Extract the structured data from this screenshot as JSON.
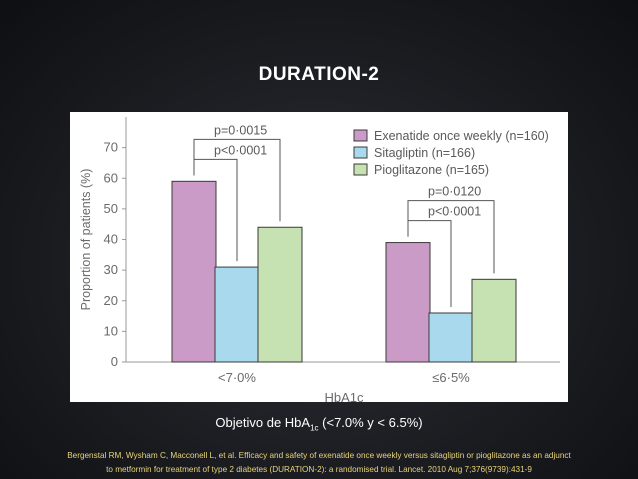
{
  "slide": {
    "title": "DURATION-2",
    "caption_prefix": "Objetivo de HbA",
    "caption_sub": "1c",
    "caption_suffix": " (<7.0% y < 6.5%)",
    "reference_line1": "Bergenstal RM, Wysham C, Macconell L, et al. Efficacy and safety of exenatide once weekly versus sitagliptin or pioglitazone as an adjunct",
    "reference_line2": "to metformin for treatment of type 2 diabetes (DURATION-2): a randomised trial. Lancet. 2010 Aug 7;376(9739):431-9"
  },
  "colors": {
    "exenatide": "#c99bc6",
    "sitagliptin": "#a9d9ec",
    "pioglitazone": "#c6e2b2"
  },
  "chart_data": {
    "type": "bar",
    "title": "",
    "xlabel": "HbA1c",
    "ylabel": "Proportion of patients (%)",
    "ylim": [
      0,
      80
    ],
    "yticks": [
      0,
      10,
      20,
      30,
      40,
      50,
      60,
      70
    ],
    "categories": [
      "<7·0%",
      "≤6·5%"
    ],
    "series": [
      {
        "name": "Exenatide once weekly (n=160)",
        "values": [
          59,
          39
        ]
      },
      {
        "name": "Sitagliptin (n=166)",
        "values": [
          31,
          16
        ]
      },
      {
        "name": "Pioglitazone (n=165)",
        "values": [
          44,
          27
        ]
      }
    ],
    "legend_position": "top-right",
    "annotations": [
      {
        "label": "p=0·0015",
        "group": 0,
        "from_series": 0,
        "to_series": 2
      },
      {
        "label": "p<0·0001",
        "group": 0,
        "from_series": 0,
        "to_series": 1
      },
      {
        "label": "p=0·0120",
        "group": 1,
        "from_series": 0,
        "to_series": 2
      },
      {
        "label": "p<0·0001",
        "group": 1,
        "from_series": 0,
        "to_series": 1
      }
    ]
  }
}
